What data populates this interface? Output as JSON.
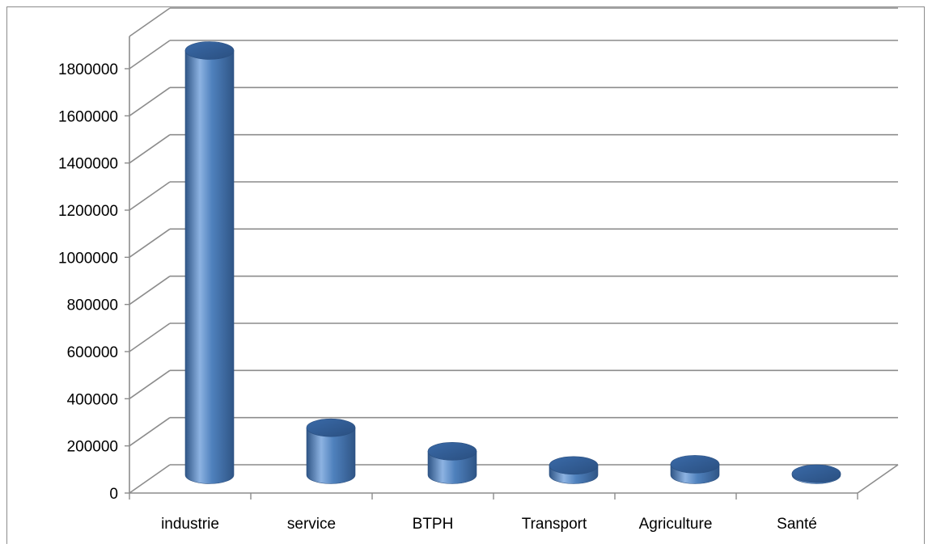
{
  "chart_data": {
    "type": "bar",
    "style": "3d-cylinder",
    "categories": [
      "industrie",
      "service",
      "BTPH",
      "Transport",
      "Agriculture",
      "Santé"
    ],
    "values": [
      1800000,
      200000,
      100000,
      40000,
      45000,
      5000
    ],
    "yticks": [
      "0",
      "200000",
      "400000",
      "600000",
      "800000",
      "1000000",
      "1200000",
      "1400000",
      "1600000",
      "1800000"
    ],
    "ylim": [
      0,
      1800000
    ],
    "title": "",
    "xlabel": "",
    "ylabel": "",
    "grid": true,
    "legend": "none",
    "colors": {
      "bar": "#4f81bd",
      "bar_dark": "#2f5586",
      "bar_light": "#8db3e2",
      "grid": "#8c8c8c"
    }
  }
}
